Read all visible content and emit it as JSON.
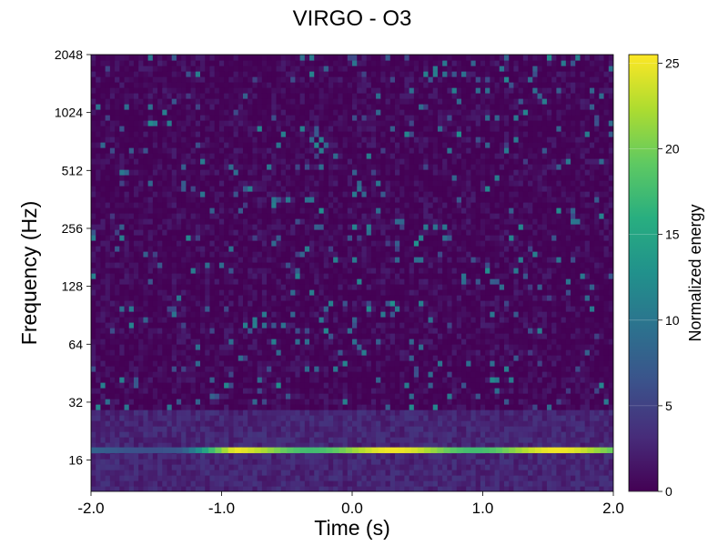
{
  "chart_data": {
    "type": "heatmap",
    "title": "VIRGO - O3",
    "xlabel": "Time (s)",
    "ylabel": "Frequency (Hz)",
    "xlim": [
      -2.0,
      2.0
    ],
    "ylim": [
      11,
      2048
    ],
    "y_scale": "log2",
    "x_ticks": [
      "-2.0",
      "-1.0",
      "0.0",
      "1.0",
      "2.0"
    ],
    "y_ticks": [
      "16",
      "32",
      "64",
      "128",
      "256",
      "512",
      "1024",
      "2048"
    ],
    "colorbar": {
      "label": "Normalized energy",
      "range": [
        0,
        25.5
      ],
      "ticks": [
        "0",
        "5",
        "10",
        "15",
        "20",
        "25"
      ],
      "colormap": [
        "#440154",
        "#472c7a",
        "#3b528b",
        "#2c728e",
        "#21918c",
        "#28ae80",
        "#5ec962",
        "#addc30",
        "#fde725"
      ]
    },
    "features": [
      {
        "kind": "band",
        "t_start": -2.0,
        "t_end": 2.0,
        "freq": 18,
        "peak_energy": 25
      }
    ],
    "grid": false
  }
}
